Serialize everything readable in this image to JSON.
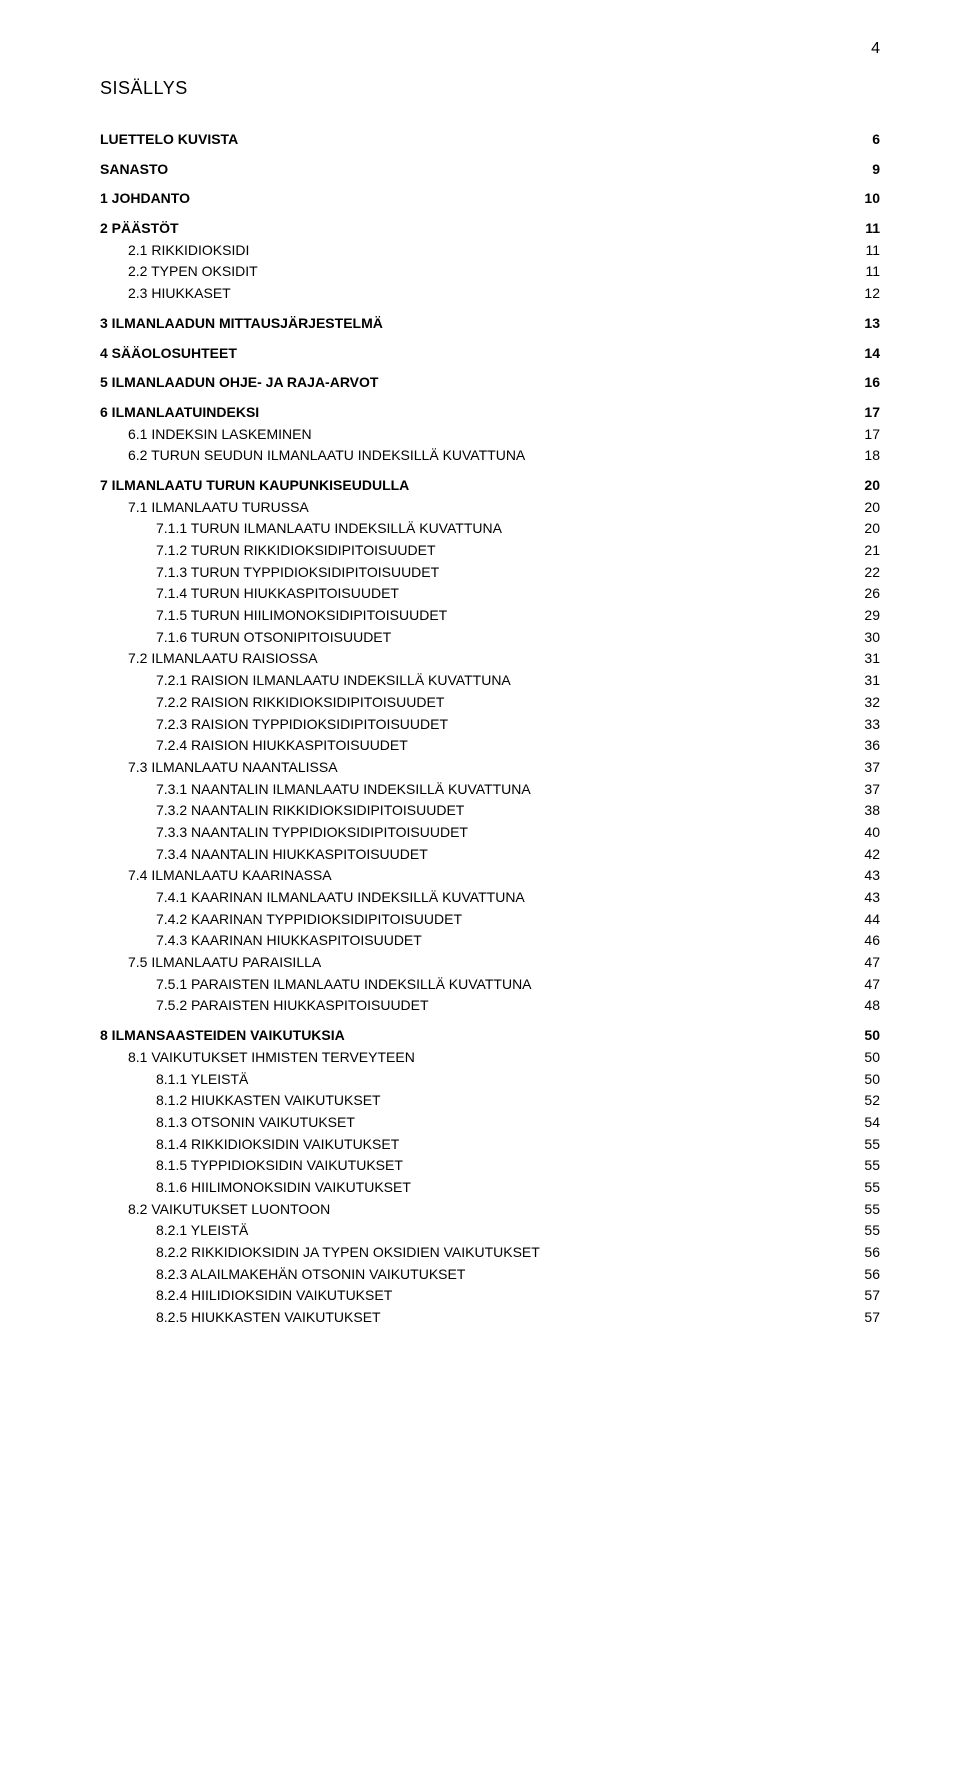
{
  "page_number": "4",
  "title": "SISÄLLYS",
  "toc": [
    {
      "level": 0,
      "label": "LUETTELO KUVISTA",
      "page": "6"
    },
    {
      "level": 0,
      "label": "SANASTO",
      "page": "9"
    },
    {
      "level": 0,
      "label": "1   JOHDANTO",
      "page": "10"
    },
    {
      "level": 0,
      "label": "2   PÄÄSTÖT",
      "page": "11"
    },
    {
      "level": 1,
      "label": "2.1   RIKKIDIOKSIDI",
      "page": "11"
    },
    {
      "level": 1,
      "label": "2.2   TYPEN OKSIDIT",
      "page": "11"
    },
    {
      "level": 1,
      "label": "2.3   HIUKKASET",
      "page": "12"
    },
    {
      "level": 0,
      "label": "3   ILMANLAADUN MITTAUSJÄRJESTELMÄ",
      "page": "13"
    },
    {
      "level": 0,
      "label": "4   SÄÄOLOSUHTEET",
      "page": "14"
    },
    {
      "level": 0,
      "label": "5   ILMANLAADUN OHJE- JA RAJA-ARVOT",
      "page": "16"
    },
    {
      "level": 0,
      "label": "6   ILMANLAATUINDEKSI",
      "page": "17"
    },
    {
      "level": 1,
      "label": "6.1   INDEKSIN LASKEMINEN",
      "page": "17"
    },
    {
      "level": 1,
      "label": "6.2   TURUN SEUDUN ILMANLAATU INDEKSILLÄ KUVATTUNA",
      "page": "18"
    },
    {
      "level": 0,
      "label": "7   ILMANLAATU TURUN KAUPUNKISEUDULLA",
      "page": "20"
    },
    {
      "level": 1,
      "label": "7.1   ILMANLAATU TURUSSA",
      "page": "20"
    },
    {
      "level": 2,
      "label": "7.1.1   TURUN ILMANLAATU INDEKSILLÄ KUVATTUNA",
      "page": "20"
    },
    {
      "level": 2,
      "label": "7.1.2   TURUN RIKKIDIOKSIDIPITOISUUDET",
      "page": "21"
    },
    {
      "level": 2,
      "label": "7.1.3   TURUN TYPPIDIOKSIDIPITOISUUDET",
      "page": "22"
    },
    {
      "level": 2,
      "label": "7.1.4   TURUN HIUKKASPITOISUUDET",
      "page": "26"
    },
    {
      "level": 2,
      "label": "7.1.5   TURUN HIILIMONOKSIDIPITOISUUDET",
      "page": "29"
    },
    {
      "level": 2,
      "label": "7.1.6   TURUN OTSONIPITOISUUDET",
      "page": "30"
    },
    {
      "level": 1,
      "label": "7.2   ILMANLAATU RAISIOSSA",
      "page": "31"
    },
    {
      "level": 2,
      "label": "7.2.1   RAISION ILMANLAATU INDEKSILLÄ KUVATTUNA",
      "page": "31"
    },
    {
      "level": 2,
      "label": "7.2.2   RAISION RIKKIDIOKSIDIPITOISUUDET",
      "page": "32"
    },
    {
      "level": 2,
      "label": "7.2.3   RAISION TYPPIDIOKSIDIPITOISUUDET",
      "page": "33"
    },
    {
      "level": 2,
      "label": "7.2.4   RAISION HIUKKASPITOISUUDET",
      "page": "36"
    },
    {
      "level": 1,
      "label": "7.3   ILMANLAATU NAANTALISSA",
      "page": "37"
    },
    {
      "level": 2,
      "label": "7.3.1   NAANTALIN ILMANLAATU INDEKSILLÄ KUVATTUNA",
      "page": "37"
    },
    {
      "level": 2,
      "label": "7.3.2   NAANTALIN RIKKIDIOKSIDIPITOISUUDET",
      "page": "38"
    },
    {
      "level": 2,
      "label": "7.3.3   NAANTALIN TYPPIDIOKSIDIPITOISUUDET",
      "page": "40"
    },
    {
      "level": 2,
      "label": "7.3.4   NAANTALIN HIUKKASPITOISUUDET",
      "page": "42"
    },
    {
      "level": 1,
      "label": "7.4   ILMANLAATU KAARINASSA",
      "page": "43"
    },
    {
      "level": 2,
      "label": "7.4.1   KAARINAN ILMANLAATU INDEKSILLÄ KUVATTUNA",
      "page": "43"
    },
    {
      "level": 2,
      "label": "7.4.2   KAARINAN TYPPIDIOKSIDIPITOISUUDET",
      "page": "44"
    },
    {
      "level": 2,
      "label": "7.4.3   KAARINAN HIUKKASPITOISUUDET",
      "page": "46"
    },
    {
      "level": 1,
      "label": "7.5   ILMANLAATU PARAISILLA",
      "page": "47"
    },
    {
      "level": 2,
      "label": "7.5.1   PARAISTEN ILMANLAATU INDEKSILLÄ KUVATTUNA",
      "page": "47"
    },
    {
      "level": 2,
      "label": "7.5.2   PARAISTEN HIUKKASPITOISUUDET",
      "page": "48"
    },
    {
      "level": 0,
      "label": "8   ILMANSAASTEIDEN VAIKUTUKSIA",
      "page": "50"
    },
    {
      "level": 1,
      "label": "8.1   VAIKUTUKSET IHMISTEN TERVEYTEEN",
      "page": "50"
    },
    {
      "level": 2,
      "label": "8.1.1   YLEISTÄ",
      "page": "50"
    },
    {
      "level": 2,
      "label": "8.1.2   HIUKKASTEN VAIKUTUKSET",
      "page": "52"
    },
    {
      "level": 2,
      "label": "8.1.3   OTSONIN VAIKUTUKSET",
      "page": "54"
    },
    {
      "level": 2,
      "label": "8.1.4   RIKKIDIOKSIDIN VAIKUTUKSET",
      "page": "55"
    },
    {
      "level": 2,
      "label": "8.1.5   TYPPIDIOKSIDIN VAIKUTUKSET",
      "page": "55"
    },
    {
      "level": 2,
      "label": "8.1.6   HIILIMONOKSIDIN VAIKUTUKSET",
      "page": "55"
    },
    {
      "level": 1,
      "label": "8.2   VAIKUTUKSET LUONTOON",
      "page": "55"
    },
    {
      "level": 2,
      "label": "8.2.1   YLEISTÄ",
      "page": "55"
    },
    {
      "level": 2,
      "label": "8.2.2   RIKKIDIOKSIDIN JA TYPEN OKSIDIEN VAIKUTUKSET",
      "page": "56"
    },
    {
      "level": 2,
      "label": "8.2.3   ALAILMAKEHÄN OTSONIN VAIKUTUKSET",
      "page": "56"
    },
    {
      "level": 2,
      "label": "8.2.4   HIILIDIOKSIDIN VAIKUTUKSET",
      "page": "57"
    },
    {
      "level": 2,
      "label": "8.2.5   HIUKKASTEN VAIKUTUKSET",
      "page": "57"
    }
  ]
}
